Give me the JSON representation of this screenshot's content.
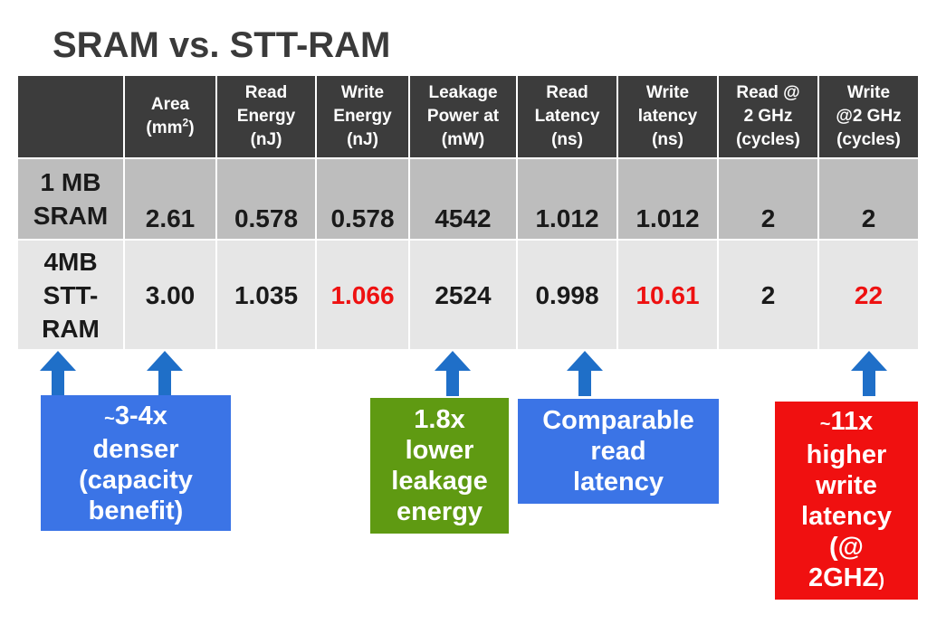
{
  "slide": {
    "title": "SRAM vs. STT-RAM"
  },
  "table": {
    "headers": [
      {
        "line1": "Area",
        "line2": "(mm",
        "sup": "2",
        "line2_end": ")"
      },
      {
        "lines": [
          "Read",
          "Energy",
          "(nJ)"
        ]
      },
      {
        "lines": [
          "Write",
          "Energy",
          "(nJ)"
        ]
      },
      {
        "lines": [
          "Leakage",
          "Power at",
          "(mW)"
        ]
      },
      {
        "lines": [
          "Read",
          "Latency",
          "(ns)"
        ]
      },
      {
        "lines": [
          "Write",
          "latency",
          "(ns)"
        ]
      },
      {
        "lines": [
          "Read @",
          "2 GHz",
          "(cycles)"
        ]
      },
      {
        "lines": [
          "Write",
          "@2 GHz",
          "(cycles)"
        ]
      }
    ],
    "rows": [
      {
        "label_lines": [
          "1 MB",
          "SRAM"
        ],
        "values": [
          "2.61",
          "0.578",
          "0.578",
          "4542",
          "1.012",
          "1.012",
          "2",
          "2"
        ]
      },
      {
        "label_lines": [
          "4MB",
          "STT-",
          "RAM"
        ],
        "values": [
          "3.00",
          "1.035",
          "1.066",
          "2524",
          "0.998",
          "10.61",
          "2",
          "22"
        ]
      }
    ],
    "colors": {
      "header_bg": "#3c3c3c",
      "sram_row_bg": "#bdbdbd",
      "stt_row_bg": "#e6e6e6",
      "highlight": "#ee1111"
    }
  },
  "annotations": {
    "denser": {
      "tilde": "~",
      "lines": [
        "3-4x",
        "denser",
        "(capacity",
        "benefit)"
      ],
      "color": "#3b74e6"
    },
    "leakage": {
      "lines": [
        "1.8x",
        "lower",
        "leakage",
        "energy"
      ],
      "color": "#5f9a12"
    },
    "read": {
      "lines": [
        "Comparable",
        "read",
        "latency"
      ],
      "color": "#3b74e6"
    },
    "write": {
      "tilde": "~",
      "lines": [
        "11x",
        "higher",
        "write",
        "latency",
        "(@",
        "2GHZ"
      ],
      "close_paren": ")",
      "color": "#f01010"
    },
    "arrow_color": "#1f6fc8"
  }
}
